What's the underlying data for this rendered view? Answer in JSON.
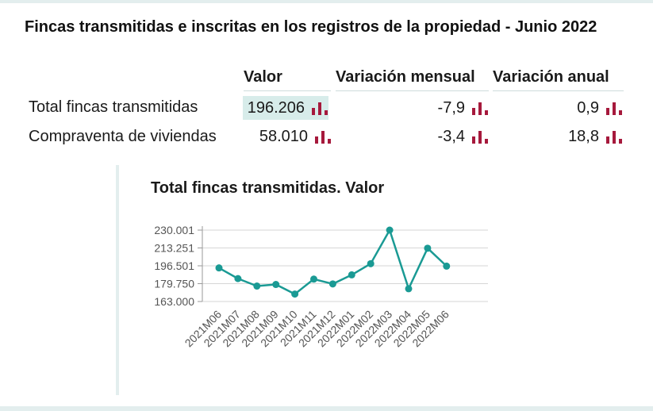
{
  "header": {
    "title": "Fincas transmitidas e inscritas en los registros de la propiedad - Junio 2022"
  },
  "table": {
    "columns": [
      "Valor",
      "Variación mensual",
      "Variación anual"
    ],
    "rows": [
      {
        "label": "Total fincas transmitidas",
        "valor": "196.206",
        "mensual": "-7,9",
        "anual": "0,9"
      },
      {
        "label": "Compraventa de viviendas",
        "valor": "58.010",
        "mensual": "-3,4",
        "anual": "18,8"
      }
    ],
    "chart_icon": "bar-chart-icon",
    "highlight_color": "#d7ecea",
    "icon_color": "#a6193c"
  },
  "chart_data": {
    "type": "line",
    "title": "Total fincas transmitidas. Valor",
    "categories": [
      "2021M06",
      "2021M07",
      "2021M08",
      "2021M09",
      "2021M10",
      "2021M11",
      "2021M12",
      "2022M01",
      "2022M02",
      "2022M03",
      "2022M04",
      "2022M05",
      "2022M06"
    ],
    "values": [
      194500,
      184500,
      177500,
      179000,
      170000,
      184000,
      179500,
      188000,
      198500,
      230001,
      175000,
      213000,
      196206
    ],
    "ylim": [
      163000,
      230001
    ],
    "yticks": [
      "230.001",
      "213.251",
      "196.501",
      "179.750",
      "163.000"
    ],
    "ytick_values": [
      230001,
      213251,
      196501,
      179750,
      163000
    ],
    "xlabel": "",
    "ylabel": "",
    "grid": true,
    "line_color": "#1a9a94"
  }
}
